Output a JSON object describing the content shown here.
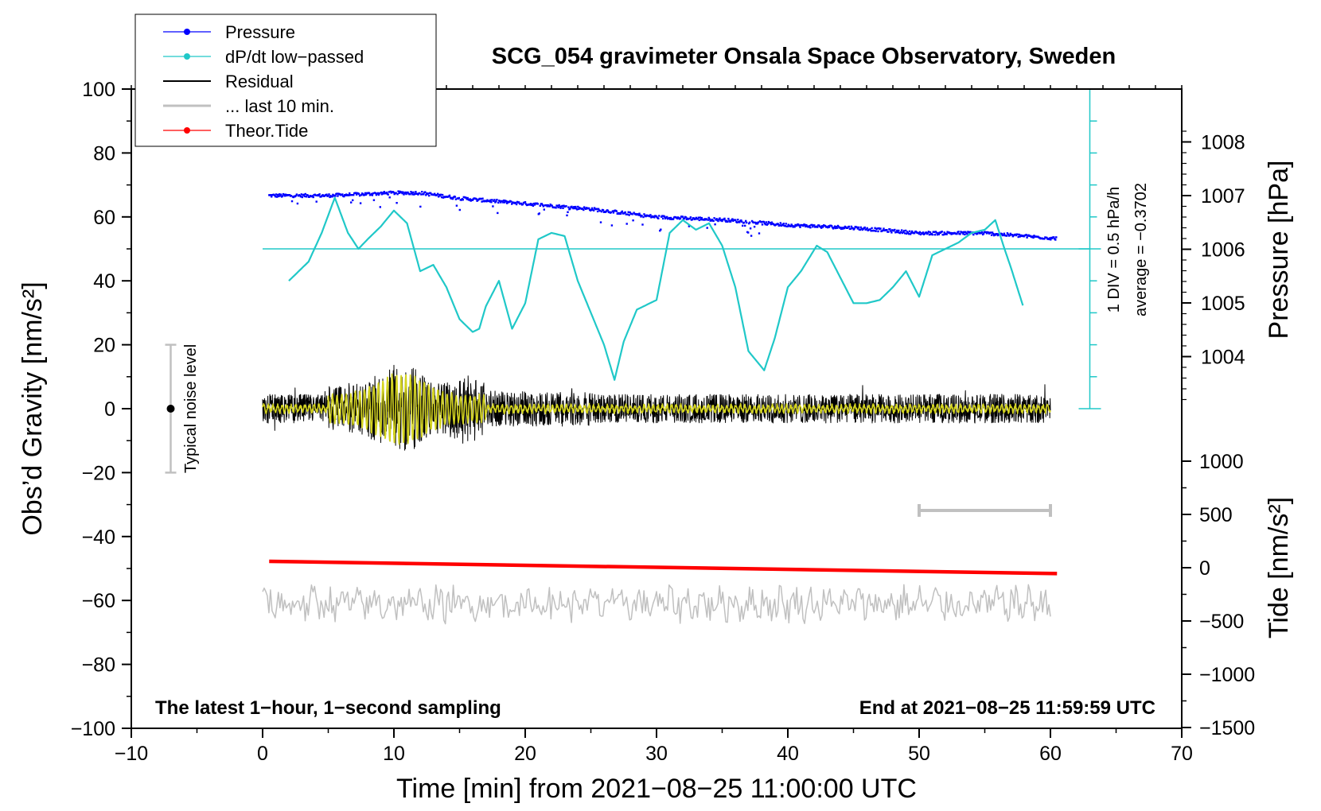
{
  "chart_data": {
    "type": "line",
    "title": "SCG_054 gravimeter Onsala Space Observatory, Sweden",
    "xlabel": "Time [min] from 2021−08−25 11:00:00 UTC",
    "ylabel_left": "Obs’d Gravity [nm/s²]",
    "ylabel_right_pressure": "Pressure [hPa]",
    "ylabel_right_tide": "Tide [nm/s²]",
    "xlim": [
      -10,
      70
    ],
    "ylim": [
      -100,
      100
    ],
    "x_ticks": [
      -10,
      0,
      10,
      20,
      30,
      40,
      50,
      60,
      70
    ],
    "y_ticks": [
      -100,
      -80,
      -60,
      -40,
      -20,
      0,
      20,
      40,
      60,
      80,
      100
    ],
    "pressure_ticks": [
      1004,
      1005,
      1006,
      1007,
      1008
    ],
    "tide_ticks": [
      -1500,
      -1000,
      -500,
      0,
      500,
      1000
    ],
    "tick_labels": {
      "x": [
        "−10",
        "0",
        "10",
        "20",
        "30",
        "40",
        "50",
        "60",
        "70"
      ],
      "y": [
        "−100",
        "−80",
        "−60",
        "−40",
        "−20",
        "0",
        "20",
        "40",
        "60",
        "80",
        "100"
      ],
      "pressure": [
        "1004",
        "1005",
        "1006",
        "1007",
        "1008"
      ],
      "tide": [
        "−1500",
        "−1000",
        "−500",
        "0",
        "500",
        "1000"
      ]
    },
    "legend": [
      {
        "label": "Pressure",
        "color": "#0000ff",
        "marker": true
      },
      {
        "label": "dP/dt low−passed",
        "color": "#20c8c8",
        "marker": true
      },
      {
        "label": "Residual",
        "color": "#000000",
        "marker": false
      },
      {
        "label": "... last 10 min.",
        "color": "#c0c0c0",
        "marker": false
      },
      {
        "label": "Theor.Tide",
        "color": "#ff0000",
        "marker": true
      }
    ],
    "series": [
      {
        "name": "Pressure",
        "axis": "pressure",
        "color": "#0000ff",
        "x": [
          0.5,
          5,
          10,
          12,
          15,
          20,
          25,
          30,
          35,
          40,
          45,
          50,
          55,
          60.5
        ],
        "values": [
          1007.0,
          1007.0,
          1007.05,
          1007.05,
          1006.95,
          1006.85,
          1006.75,
          1006.6,
          1006.55,
          1006.45,
          1006.4,
          1006.3,
          1006.3,
          1006.2
        ]
      },
      {
        "name": "dP/dt low−passed",
        "axis": "left",
        "color": "#20c8c8",
        "x": [
          2,
          3.5,
          4.5,
          5.5,
          6.5,
          7.3,
          8,
          9,
          10,
          11,
          12,
          13,
          14,
          15,
          16,
          16.5,
          17,
          18,
          19,
          20,
          21,
          22,
          23,
          24,
          25,
          26,
          26.8,
          27.5,
          28.5,
          30,
          31,
          32,
          33,
          34,
          35,
          36,
          37,
          38.2,
          39,
          40,
          41,
          42.2,
          43,
          44,
          45,
          46,
          47,
          48,
          49,
          50,
          51,
          52,
          53,
          54,
          55,
          55.8,
          56.5,
          57,
          58
        ],
        "values": [
          40,
          46,
          55,
          66,
          55,
          50,
          53,
          57,
          62,
          58,
          43,
          45,
          38,
          28,
          24,
          25,
          32,
          40,
          25,
          33,
          53,
          55,
          54,
          40,
          30,
          20,
          9,
          21,
          31,
          34,
          55,
          59,
          56,
          58,
          51,
          38,
          18,
          12,
          22,
          38,
          43,
          51,
          49,
          41,
          33,
          33,
          34,
          38,
          43,
          35,
          48,
          50,
          52,
          55,
          56,
          59,
          50,
          44,
          31
        ]
      },
      {
        "name": "dP/dt zero line",
        "axis": "left",
        "color": "#20c8c8",
        "x": [
          0,
          63
        ],
        "values": [
          50,
          50
        ]
      },
      {
        "name": "Residual",
        "axis": "left",
        "color": "#000000",
        "x_range": [
          0,
          60
        ],
        "amplitude": 27
      },
      {
        "name": "Residual (smoothed)",
        "axis": "left",
        "color": "#d4d420",
        "x_range": [
          0,
          60
        ],
        "amplitude": 14
      },
      {
        "name": "... last 10 min.",
        "axis": "left",
        "color": "#c0c0c0",
        "x_range": [
          0,
          60
        ],
        "baseline": -61
      },
      {
        "name": "Theor.Tide",
        "axis": "tide",
        "color": "#ff0000",
        "x": [
          0.5,
          60.5
        ],
        "values": [
          60,
          -55
        ]
      }
    ],
    "annotations": {
      "bottom_left": "The latest 1−hour, 1−second sampling",
      "bottom_right": "End at 2021−08−25 11:59:59 UTC",
      "noise": "Typical noise level",
      "noise_range": [
        -20,
        20
      ],
      "div": "1 DIV = 0.5 hPa/h",
      "average": "average = −0.3702",
      "window_bar_x": [
        50,
        60
      ]
    }
  }
}
